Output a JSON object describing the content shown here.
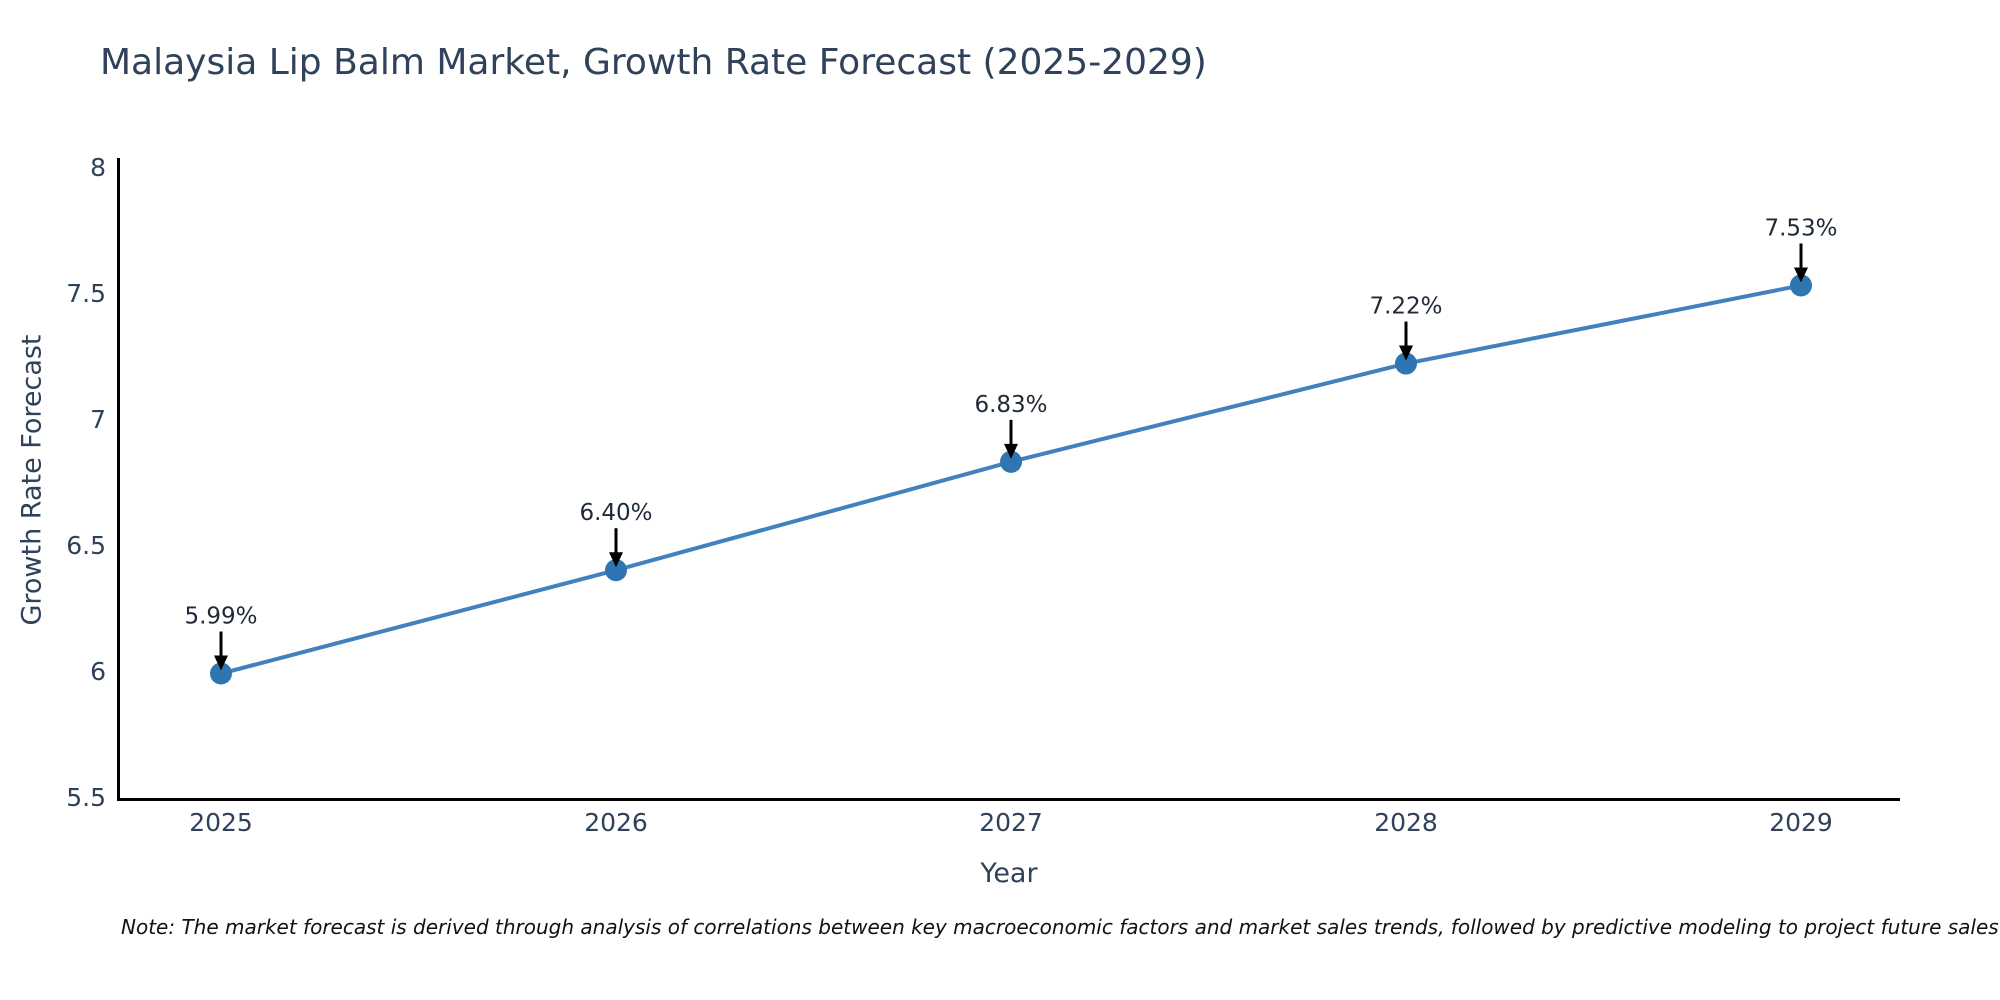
{
  "chart_data": {
    "type": "line",
    "title": "Malaysia Lip Balm Market, Growth Rate Forecast (2025-2029)",
    "xlabel": "Year",
    "ylabel": "Growth Rate Forecast",
    "categories": [
      "2025",
      "2026",
      "2027",
      "2028",
      "2029"
    ],
    "values": [
      5.99,
      6.4,
      6.83,
      7.22,
      7.53
    ],
    "point_labels": [
      "5.99%",
      "6.40%",
      "6.83%",
      "7.22%",
      "7.53%"
    ],
    "ytick_labels": [
      "5.5",
      "6",
      "6.5",
      "7",
      "7.5",
      "8"
    ],
    "yticks": [
      5.5,
      6,
      6.5,
      7,
      7.5,
      8
    ],
    "ylim": [
      5.5,
      8
    ],
    "grid": false,
    "legend": "none",
    "line_color": "#4181bd",
    "marker_color": "#2e75b2",
    "axis_color": "#000000",
    "text_color": "#30415a",
    "annotation_text_color": "#1f2937",
    "arrow_color": "#000000"
  },
  "note": {
    "text": "Note: The market forecast is derived through analysis of correlations between key macroeconomic factors and market sales trends, followed by predictive modeling to project future sales"
  }
}
